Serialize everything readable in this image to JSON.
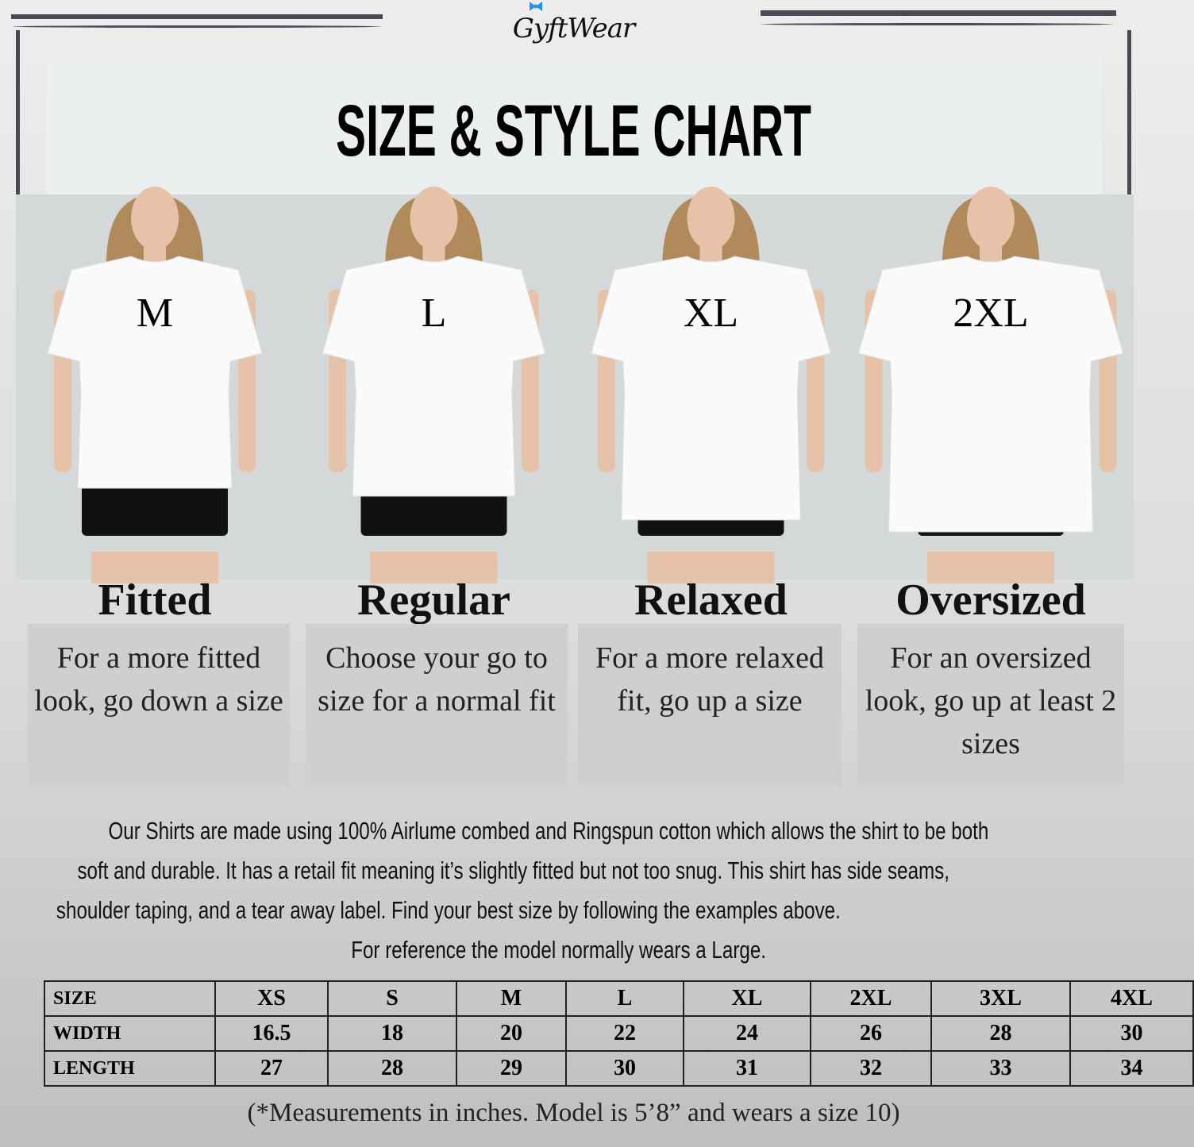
{
  "brand": {
    "logo_text": "GyftWear"
  },
  "title": "SIZE & STYLE CHART",
  "fits": [
    {
      "size": "M",
      "style": "Fitted",
      "description": "For a more fitted look, go down a size"
    },
    {
      "size": "L",
      "style": "Regular",
      "description": "Choose your go to size for a normal fit"
    },
    {
      "size": "XL",
      "style": "Relaxed",
      "description": "For a more relaxed fit, go up a size"
    },
    {
      "size": "2XL",
      "style": "Oversized",
      "description": "For an oversized look, go up at least 2 sizes"
    }
  ],
  "description": {
    "lines": [
      "Our Shirts are made using 100% Airlume combed and Ringspun cotton which allows the shirt to be both",
      "soft and durable. It has a retail fit meaning it’s slightly fitted but not too snug. This shirt has side seams,",
      "shoulder taping, and a tear away label. Find your best size by following the examples above.",
      "For reference the model normally wears a Large."
    ]
  },
  "table": {
    "header": [
      "SIZE",
      "XS",
      "S",
      "M",
      "L",
      "XL",
      "2XL",
      "3XL",
      "4XL"
    ],
    "rows": [
      [
        "WIDTH",
        "16.5",
        "18",
        "20",
        "22",
        "24",
        "26",
        "28",
        "30"
      ],
      [
        "LENGTH",
        "27",
        "28",
        "29",
        "30",
        "31",
        "32",
        "33",
        "34"
      ]
    ]
  },
  "footnote": "(*Measurements in inches. Model is 5’8” and wears a size 10)",
  "colors": {
    "frame": "#4a4a55",
    "header_bg": "#eceff0",
    "desc_box": "#cfcfcf",
    "logo_bow": "#2a8ff0"
  }
}
